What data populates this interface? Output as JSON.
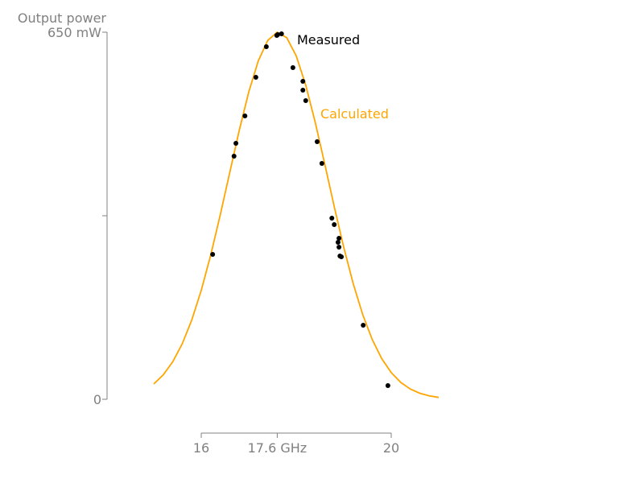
{
  "chart_data": {
    "type": "line",
    "y_label": "Output power",
    "xlim": [
      15,
      21
    ],
    "ylim": [
      0,
      650
    ],
    "xticks": [
      16,
      {
        "value": 17.6,
        "label": "17.6 GHz"
      },
      20
    ],
    "yticks": [
      0,
      {
        "value": 650,
        "label": "650 mW"
      }
    ],
    "yminor_ticks": [
      325
    ],
    "axis_color": "#808080",
    "series": [
      {
        "name": "Calculated",
        "type": "line",
        "color": "#ffa500",
        "x": [
          15.0,
          15.2,
          15.4,
          15.6,
          15.8,
          16.0,
          16.2,
          16.4,
          16.6,
          16.8,
          17.0,
          17.2,
          17.4,
          17.6,
          17.8,
          18.0,
          18.2,
          18.4,
          18.6,
          18.8,
          19.0,
          19.2,
          19.4,
          19.6,
          19.8,
          20.0,
          20.2,
          20.4,
          20.6,
          20.8,
          21.0
        ],
        "values": [
          27.1,
          43.2,
          66.4,
          98.3,
          140.3,
          192.9,
          255.6,
          326.4,
          401.6,
          476.1,
          544.0,
          599.1,
          635.5,
          650.0,
          640.3,
          608.0,
          556.3,
          490.4,
          416.7,
          341.2,
          269.2,
          204.6,
          149.9,
          105.8,
          72.0,
          47.3,
          29.9,
          18.2,
          10.7,
          6.0,
          3.3
        ]
      },
      {
        "name": "Measured",
        "type": "scatter",
        "color": "#000000",
        "x": [
          16.24,
          16.69,
          16.73,
          16.92,
          17.15,
          17.37,
          17.59,
          17.61,
          17.69,
          17.93,
          18.14,
          18.14,
          18.2,
          18.44,
          18.54,
          18.75,
          18.8,
          18.9,
          18.88,
          18.9,
          18.92,
          18.95,
          19.41,
          19.93
        ],
        "values": [
          256.6,
          430.5,
          453.3,
          501.7,
          570.2,
          624.3,
          644.3,
          645.7,
          647.1,
          587.3,
          563.0,
          547.4,
          528.8,
          456.1,
          417.6,
          320.7,
          309.3,
          285.1,
          278.0,
          269.4,
          253.7,
          252.3,
          131.1,
          24.2
        ]
      }
    ]
  }
}
